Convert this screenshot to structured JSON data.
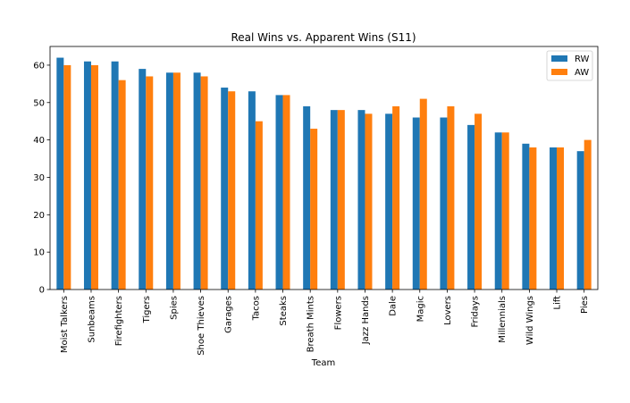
{
  "chart_data": {
    "type": "bar",
    "title": "Real Wins vs. Apparent Wins (S11)",
    "xlabel": "Team",
    "ylabel": "",
    "ylim": [
      0,
      65
    ],
    "yticks": [
      0,
      10,
      20,
      30,
      40,
      50,
      60
    ],
    "grid": false,
    "legend_position": "top-right",
    "categories": [
      "Moist Talkers",
      "Sunbeams",
      "Firefighters",
      "Tigers",
      "Spies",
      "Shoe Thieves",
      "Garages",
      "Tacos",
      "Steaks",
      "Breath Mints",
      "Flowers",
      "Jazz Hands",
      "Dale",
      "Magic",
      "Lovers",
      "Fridays",
      "Millennials",
      "Wild Wings",
      "Lift",
      "Pies"
    ],
    "series": [
      {
        "name": "RW",
        "color": "#1f77b4",
        "values": [
          62,
          61,
          61,
          59,
          58,
          58,
          54,
          53,
          52,
          49,
          48,
          48,
          47,
          46,
          46,
          44,
          42,
          39,
          38,
          37
        ]
      },
      {
        "name": "AW",
        "color": "#ff7f0e",
        "values": [
          60,
          60,
          56,
          57,
          58,
          57,
          53,
          45,
          52,
          43,
          48,
          47,
          49,
          51,
          49,
          47,
          42,
          38,
          38,
          40
        ]
      }
    ]
  }
}
